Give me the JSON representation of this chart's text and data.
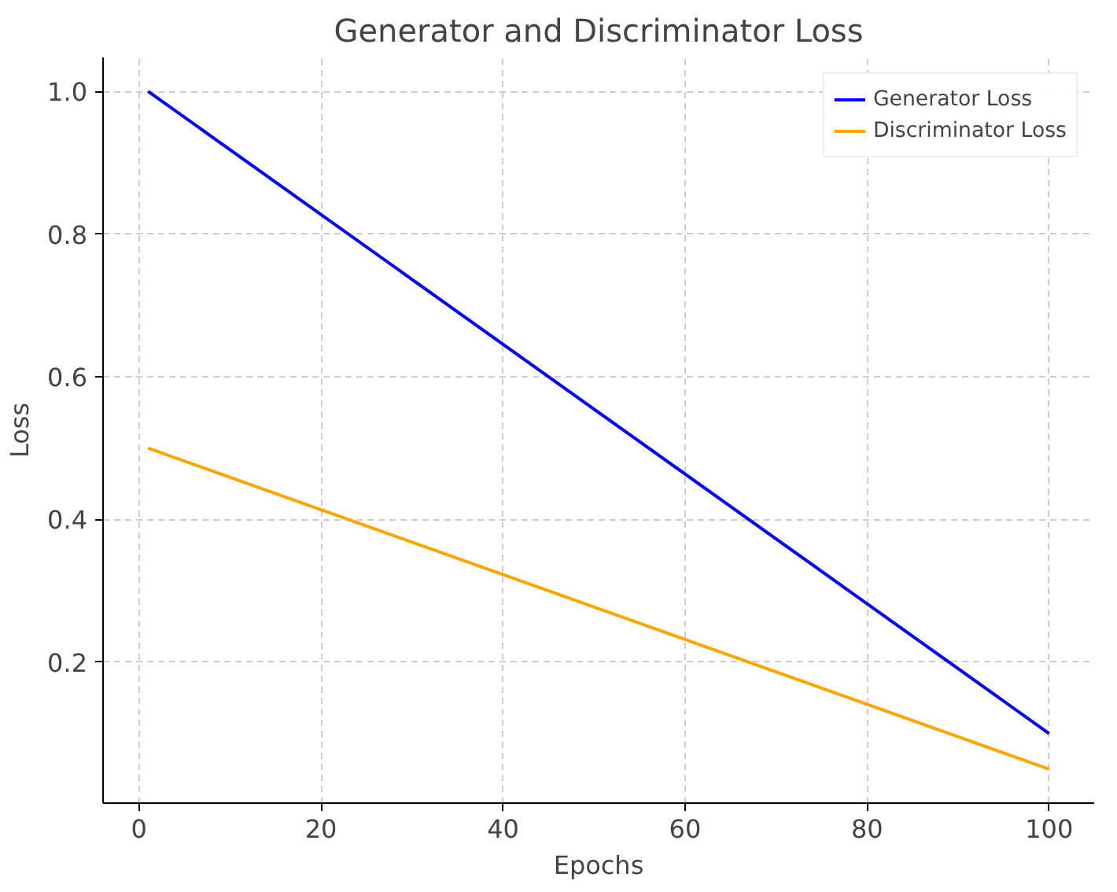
{
  "chart_data": {
    "type": "line",
    "title": "Generator and Discriminator Loss",
    "xlabel": "Epochs",
    "ylabel": "Loss",
    "x": [
      1,
      100
    ],
    "series": [
      {
        "name": "Generator Loss",
        "color": "#0000ff",
        "values": [
          1.0,
          0.1
        ]
      },
      {
        "name": "Discriminator Loss",
        "color": "#ffa500",
        "values": [
          0.5,
          0.05
        ]
      }
    ],
    "xlim": [
      -3.95,
      104.95
    ],
    "ylim": [
      0.0025,
      1.0475
    ],
    "xticks": [
      0,
      20,
      40,
      60,
      80,
      100
    ],
    "yticks": [
      0.2,
      0.4,
      0.6,
      0.8,
      {
        "value": 1,
        "label": "1.0"
      }
    ],
    "grid": true,
    "legend": "top right",
    "marker": "none",
    "line_style": "solid"
  }
}
